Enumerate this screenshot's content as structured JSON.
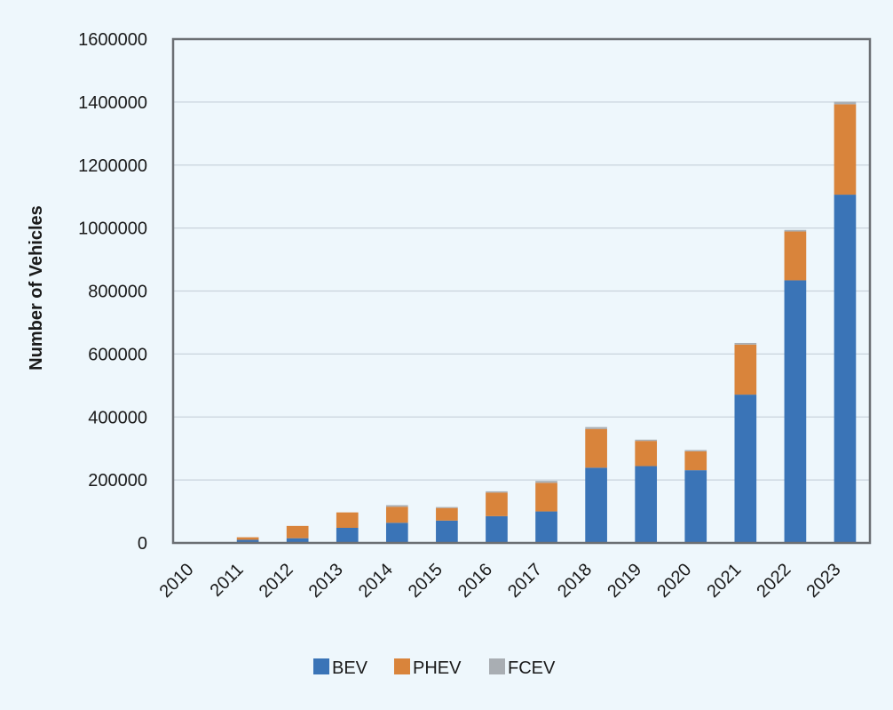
{
  "colors": {
    "background": "#eef7fc",
    "plot_background": "#eef7fc",
    "gridline": "#c9d3dc",
    "axis": "#6b6f73",
    "text": "#1a1a1a"
  },
  "chart_data": {
    "type": "bar",
    "stacked": true,
    "title": "",
    "xlabel": "",
    "ylabel": "Number of Vehicles",
    "ylim": [
      0,
      1600000
    ],
    "yticks": [
      0,
      200000,
      400000,
      600000,
      800000,
      1000000,
      1200000,
      1400000,
      1600000
    ],
    "grid": true,
    "legend_position": "bottom-center",
    "categories": [
      "2010",
      "2011",
      "2012",
      "2013",
      "2014",
      "2015",
      "2016",
      "2017",
      "2018",
      "2019",
      "2020",
      "2021",
      "2022",
      "2023"
    ],
    "series": [
      {
        "name": "BEV",
        "color": "#3a74b7",
        "values": [
          1000,
          10000,
          15000,
          48000,
          64000,
          71000,
          85000,
          100000,
          239000,
          244000,
          231000,
          471000,
          834000,
          1106000
        ]
      },
      {
        "name": "PHEV",
        "color": "#d9843b",
        "values": [
          300,
          8000,
          39000,
          49000,
          51000,
          40000,
          75000,
          91000,
          123000,
          80000,
          60000,
          159000,
          155000,
          287000
        ]
      },
      {
        "name": "FCEV",
        "color": "#a9aeb3",
        "values": [
          0,
          0,
          0,
          0,
          5000,
          3000,
          4000,
          6000,
          6000,
          4000,
          4000,
          5000,
          5000,
          8000
        ]
      }
    ]
  }
}
